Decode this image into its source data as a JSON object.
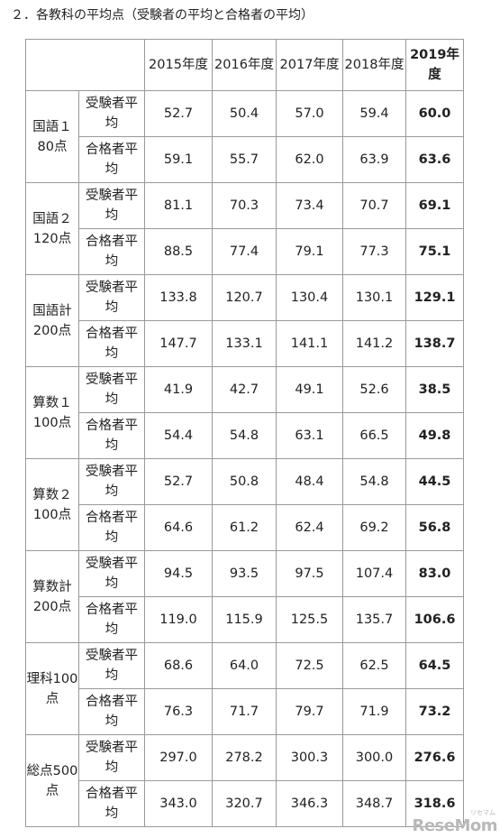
{
  "heading": "２．各教科の平均点（受験者の平均と合格者の平均）",
  "table": {
    "years": [
      "2015年度",
      "2016年度",
      "2017年度",
      "2018年度",
      "2019年度"
    ],
    "groups": [
      {
        "subject": "国語１80点",
        "rows": [
          {
            "type": "受験者平均",
            "values": [
              "52.7",
              "50.4",
              "57.0",
              "59.4",
              "60.0"
            ]
          },
          {
            "type": "合格者平均",
            "values": [
              "59.1",
              "55.7",
              "62.0",
              "63.9",
              "63.6"
            ]
          }
        ]
      },
      {
        "subject": "国語２120点",
        "rows": [
          {
            "type": "受験者平均",
            "values": [
              "81.1",
              "70.3",
              "73.4",
              "70.7",
              "69.1"
            ]
          },
          {
            "type": "合格者平均",
            "values": [
              "88.5",
              "77.4",
              "79.1",
              "77.3",
              "75.1"
            ]
          }
        ]
      },
      {
        "subject": "国語計200点",
        "rows": [
          {
            "type": "受験者平均",
            "values": [
              "133.8",
              "120.7",
              "130.4",
              "130.1",
              "129.1"
            ]
          },
          {
            "type": "合格者平均",
            "values": [
              "147.7",
              "133.1",
              "141.1",
              "141.2",
              "138.7"
            ]
          }
        ]
      },
      {
        "subject": "算数１100点",
        "rows": [
          {
            "type": "受験者平均",
            "values": [
              "41.9",
              "42.7",
              "49.1",
              "52.6",
              "38.5"
            ]
          },
          {
            "type": "合格者平均",
            "values": [
              "54.4",
              "54.8",
              "63.1",
              "66.5",
              "49.8"
            ]
          }
        ]
      },
      {
        "subject": "算数２100点",
        "rows": [
          {
            "type": "受験者平均",
            "values": [
              "52.7",
              "50.8",
              "48.4",
              "54.8",
              "44.5"
            ]
          },
          {
            "type": "合格者平均",
            "values": [
              "64.6",
              "61.2",
              "62.4",
              "69.2",
              "56.8"
            ]
          }
        ]
      },
      {
        "subject": "算数計200点",
        "rows": [
          {
            "type": "受験者平均",
            "values": [
              "94.5",
              "93.5",
              "97.5",
              "107.4",
              "83.0"
            ]
          },
          {
            "type": "合格者平均",
            "values": [
              "119.0",
              "115.9",
              "125.5",
              "135.7",
              "106.6"
            ]
          }
        ]
      },
      {
        "subject": "理科100点",
        "rows": [
          {
            "type": "受験者平均",
            "values": [
              "68.6",
              "64.0",
              "72.5",
              "62.5",
              "64.5"
            ]
          },
          {
            "type": "合格者平均",
            "values": [
              "76.3",
              "71.7",
              "79.7",
              "71.9",
              "73.2"
            ]
          }
        ]
      },
      {
        "subject": "総点500点",
        "rows": [
          {
            "type": "受験者平均",
            "values": [
              "297.0",
              "278.2",
              "300.3",
              "300.0",
              "276.6"
            ]
          },
          {
            "type": "合格者平均",
            "values": [
              "343.0",
              "320.7",
              "346.3",
              "348.7",
              "318.6"
            ]
          }
        ]
      }
    ]
  },
  "watermark": {
    "brand": "ReseMom",
    "small": "リセマム"
  }
}
